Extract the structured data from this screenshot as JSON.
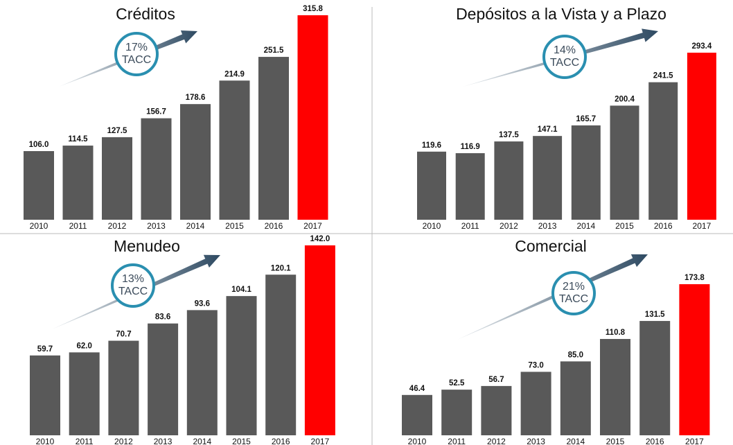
{
  "chart_data": [
    {
      "type": "bar",
      "title": "Créditos",
      "annotation": [
        "17%",
        "TACC"
      ],
      "categories": [
        "2010",
        "2011",
        "2012",
        "2013",
        "2014",
        "2015",
        "2016",
        "2017"
      ],
      "values": [
        106.0,
        114.5,
        127.5,
        156.7,
        178.6,
        214.9,
        251.5,
        315.8
      ],
      "value_labels": [
        "106.0",
        "114.5",
        "127.5",
        "156.7",
        "178.6",
        "214.9",
        "251.5",
        "315.8"
      ],
      "colors": [
        "#595959",
        "#595959",
        "#595959",
        "#595959",
        "#595959",
        "#595959",
        "#595959",
        "#ff0000"
      ]
    },
    {
      "type": "bar",
      "title": "Depósitos a la Vista y a Plazo",
      "annotation": [
        "14%",
        "TACC"
      ],
      "categories": [
        "2010",
        "2011",
        "2012",
        "2013",
        "2014",
        "2015",
        "2016",
        "2017"
      ],
      "values": [
        119.6,
        116.9,
        137.5,
        147.1,
        165.7,
        200.4,
        241.5,
        293.4
      ],
      "value_labels": [
        "119.6",
        "116.9",
        "137.5",
        "147.1",
        "165.7",
        "200.4",
        "241.5",
        "293.4"
      ],
      "colors": [
        "#595959",
        "#595959",
        "#595959",
        "#595959",
        "#595959",
        "#595959",
        "#595959",
        "#ff0000"
      ]
    },
    {
      "type": "bar",
      "title": "Menudeo",
      "annotation": [
        "13%",
        "TACC"
      ],
      "categories": [
        "2010",
        "2011",
        "2012",
        "2013",
        "2014",
        "2015",
        "2016",
        "2017"
      ],
      "values": [
        59.7,
        62.0,
        70.7,
        83.6,
        93.6,
        104.1,
        120.1,
        142.0
      ],
      "value_labels": [
        "59.7",
        "62.0",
        "70.7",
        "83.6",
        "93.6",
        "104.1",
        "120.1",
        "142.0"
      ],
      "colors": [
        "#595959",
        "#595959",
        "#595959",
        "#595959",
        "#595959",
        "#595959",
        "#595959",
        "#ff0000"
      ]
    },
    {
      "type": "bar",
      "title": "Comercial",
      "annotation": [
        "21%",
        "TACC"
      ],
      "categories": [
        "2010",
        "2011",
        "2012",
        "2013",
        "2014",
        "2015",
        "2016",
        "2017"
      ],
      "values": [
        46.4,
        52.5,
        56.7,
        73.0,
        85.0,
        110.8,
        131.5,
        173.8
      ],
      "value_labels": [
        "46.4",
        "52.5",
        "56.7",
        "73.0",
        "85.0",
        "110.8",
        "131.5",
        "173.8"
      ],
      "colors": [
        "#595959",
        "#595959",
        "#595959",
        "#595959",
        "#595959",
        "#595959",
        "#595959",
        "#ff0000"
      ]
    }
  ]
}
